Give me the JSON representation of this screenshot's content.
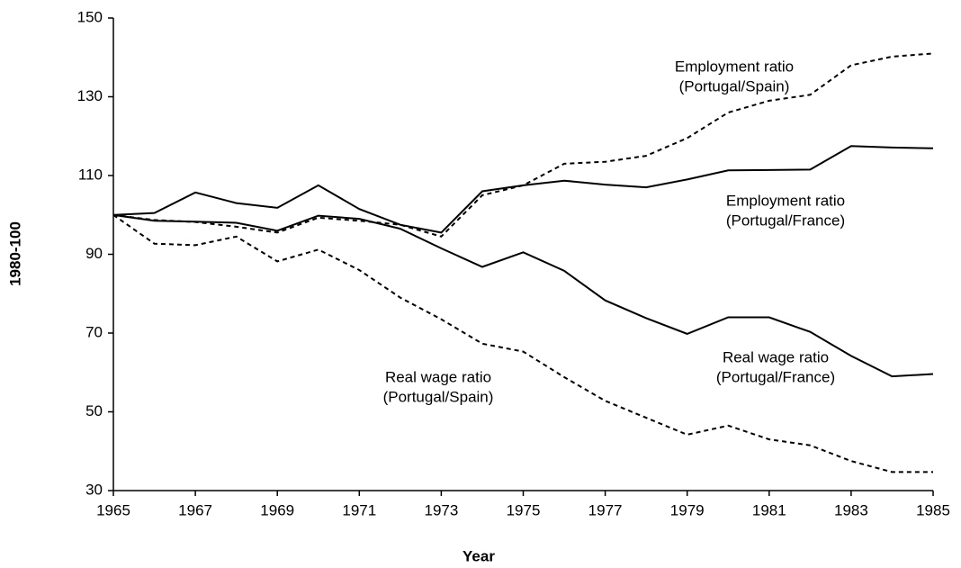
{
  "chart_data": {
    "type": "line",
    "x_label": "Year",
    "y_label": "1980-100",
    "x": [
      1965,
      1966,
      1967,
      1968,
      1969,
      1970,
      1971,
      1972,
      1973,
      1974,
      1975,
      1976,
      1977,
      1978,
      1979,
      1980,
      1981,
      1982,
      1983,
      1984,
      1985
    ],
    "xlim": [
      1965,
      1985
    ],
    "xticks": [
      1965,
      1967,
      1969,
      1971,
      1973,
      1975,
      1977,
      1979,
      1981,
      1983,
      1985
    ],
    "ylim": [
      30,
      150
    ],
    "yticks": [
      30,
      50,
      70,
      90,
      110,
      130,
      150
    ],
    "series": [
      {
        "name": [
          "Employment ratio",
          "(Portugal/Spain)"
        ],
        "color": "#000000",
        "dash": true,
        "values": [
          100,
          98.7,
          98.2,
          97,
          95.5,
          99.3,
          98.5,
          97.5,
          94.5,
          105,
          107.5,
          113,
          113.5,
          115,
          119.5,
          126,
          129,
          130.5,
          138,
          140.2,
          141
        ]
      },
      {
        "name": [
          "Employment ratio",
          "(Portugal/France)"
        ],
        "color": "#000000",
        "dash": false,
        "values": [
          100,
          100.5,
          105.7,
          103,
          101.8,
          107.5,
          101.5,
          97.5,
          95.5,
          106,
          107.5,
          108.7,
          107.7,
          107,
          109,
          111.3,
          111.4,
          111.5,
          117.5,
          117.1,
          116.9
        ]
      },
      {
        "name": [
          "Real wage ratio",
          "(Portugal/France)"
        ],
        "color": "#000000",
        "dash": false,
        "values": [
          100,
          98.5,
          98.3,
          98,
          96,
          99.8,
          99,
          96.5,
          91.5,
          86.8,
          90.5,
          85.8,
          78.3,
          73.8,
          69.8,
          74,
          74,
          70.3,
          64.2,
          59,
          59.6
        ]
      },
      {
        "name": [
          "Real wage ratio",
          "(Portugal/Spain)"
        ],
        "color": "#000000",
        "dash": true,
        "values": [
          100,
          92.7,
          92.3,
          94.5,
          88.2,
          91.2,
          86,
          79,
          73.5,
          67.3,
          65.3,
          58.8,
          52.8,
          48.5,
          44.2,
          46.5,
          43,
          41.5,
          37.5,
          34.7,
          34.7
        ]
      }
    ]
  }
}
